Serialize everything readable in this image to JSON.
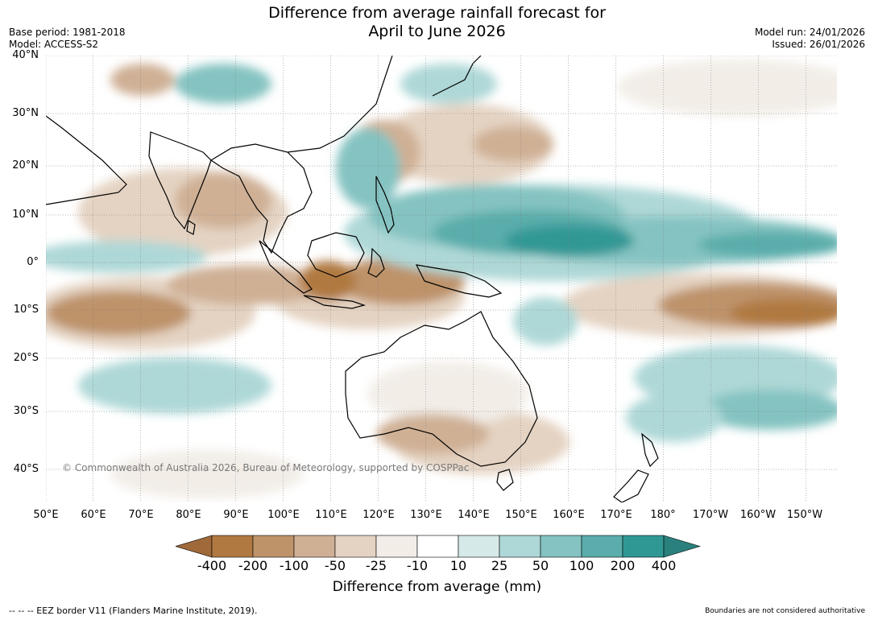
{
  "title_line1": "Difference from average rainfall forecast for",
  "title_line2": "April to June 2026",
  "base_period": "Base period: 1981-2018",
  "model": "Model: ACCESS-S2",
  "model_run": "Model run: 24/01/2026",
  "issued": "Issued: 26/01/2026",
  "lat_labels": [
    "40°N",
    "30°N",
    "20°N",
    "10°N",
    "0°",
    "10°S",
    "20°S",
    "30°S",
    "40°S"
  ],
  "lon_labels": [
    "50°E",
    "60°E",
    "70°E",
    "80°E",
    "90°E",
    "100°E",
    "110°E",
    "120°E",
    "130°E",
    "140°E",
    "150°E",
    "160°E",
    "170°E",
    "180°",
    "170°W",
    "160°W",
    "150°W"
  ],
  "copyright": "© Commonwealth of Australia 2026, Bureau of Meteorology, supported by COSPPac",
  "colorbar": {
    "labels": [
      "-400",
      "-200",
      "-100",
      "-50",
      "-25",
      "-10",
      "10",
      "25",
      "50",
      "100",
      "200",
      "400"
    ],
    "colors": [
      "#a0693a",
      "#b07941",
      "#be936a",
      "#cfb095",
      "#e4d3c2",
      "#f2ede7",
      "#ffffff",
      "#d5e9e8",
      "#aed8d7",
      "#84c3c1",
      "#5aadab",
      "#309894",
      "#29807c"
    ],
    "title": "Difference from average (mm)"
  },
  "footer_left": "--  --  -- EEZ border V11 (Flanders Marine Institute, 2019).",
  "footer_right": "Boundaries are not considered authoritative"
}
